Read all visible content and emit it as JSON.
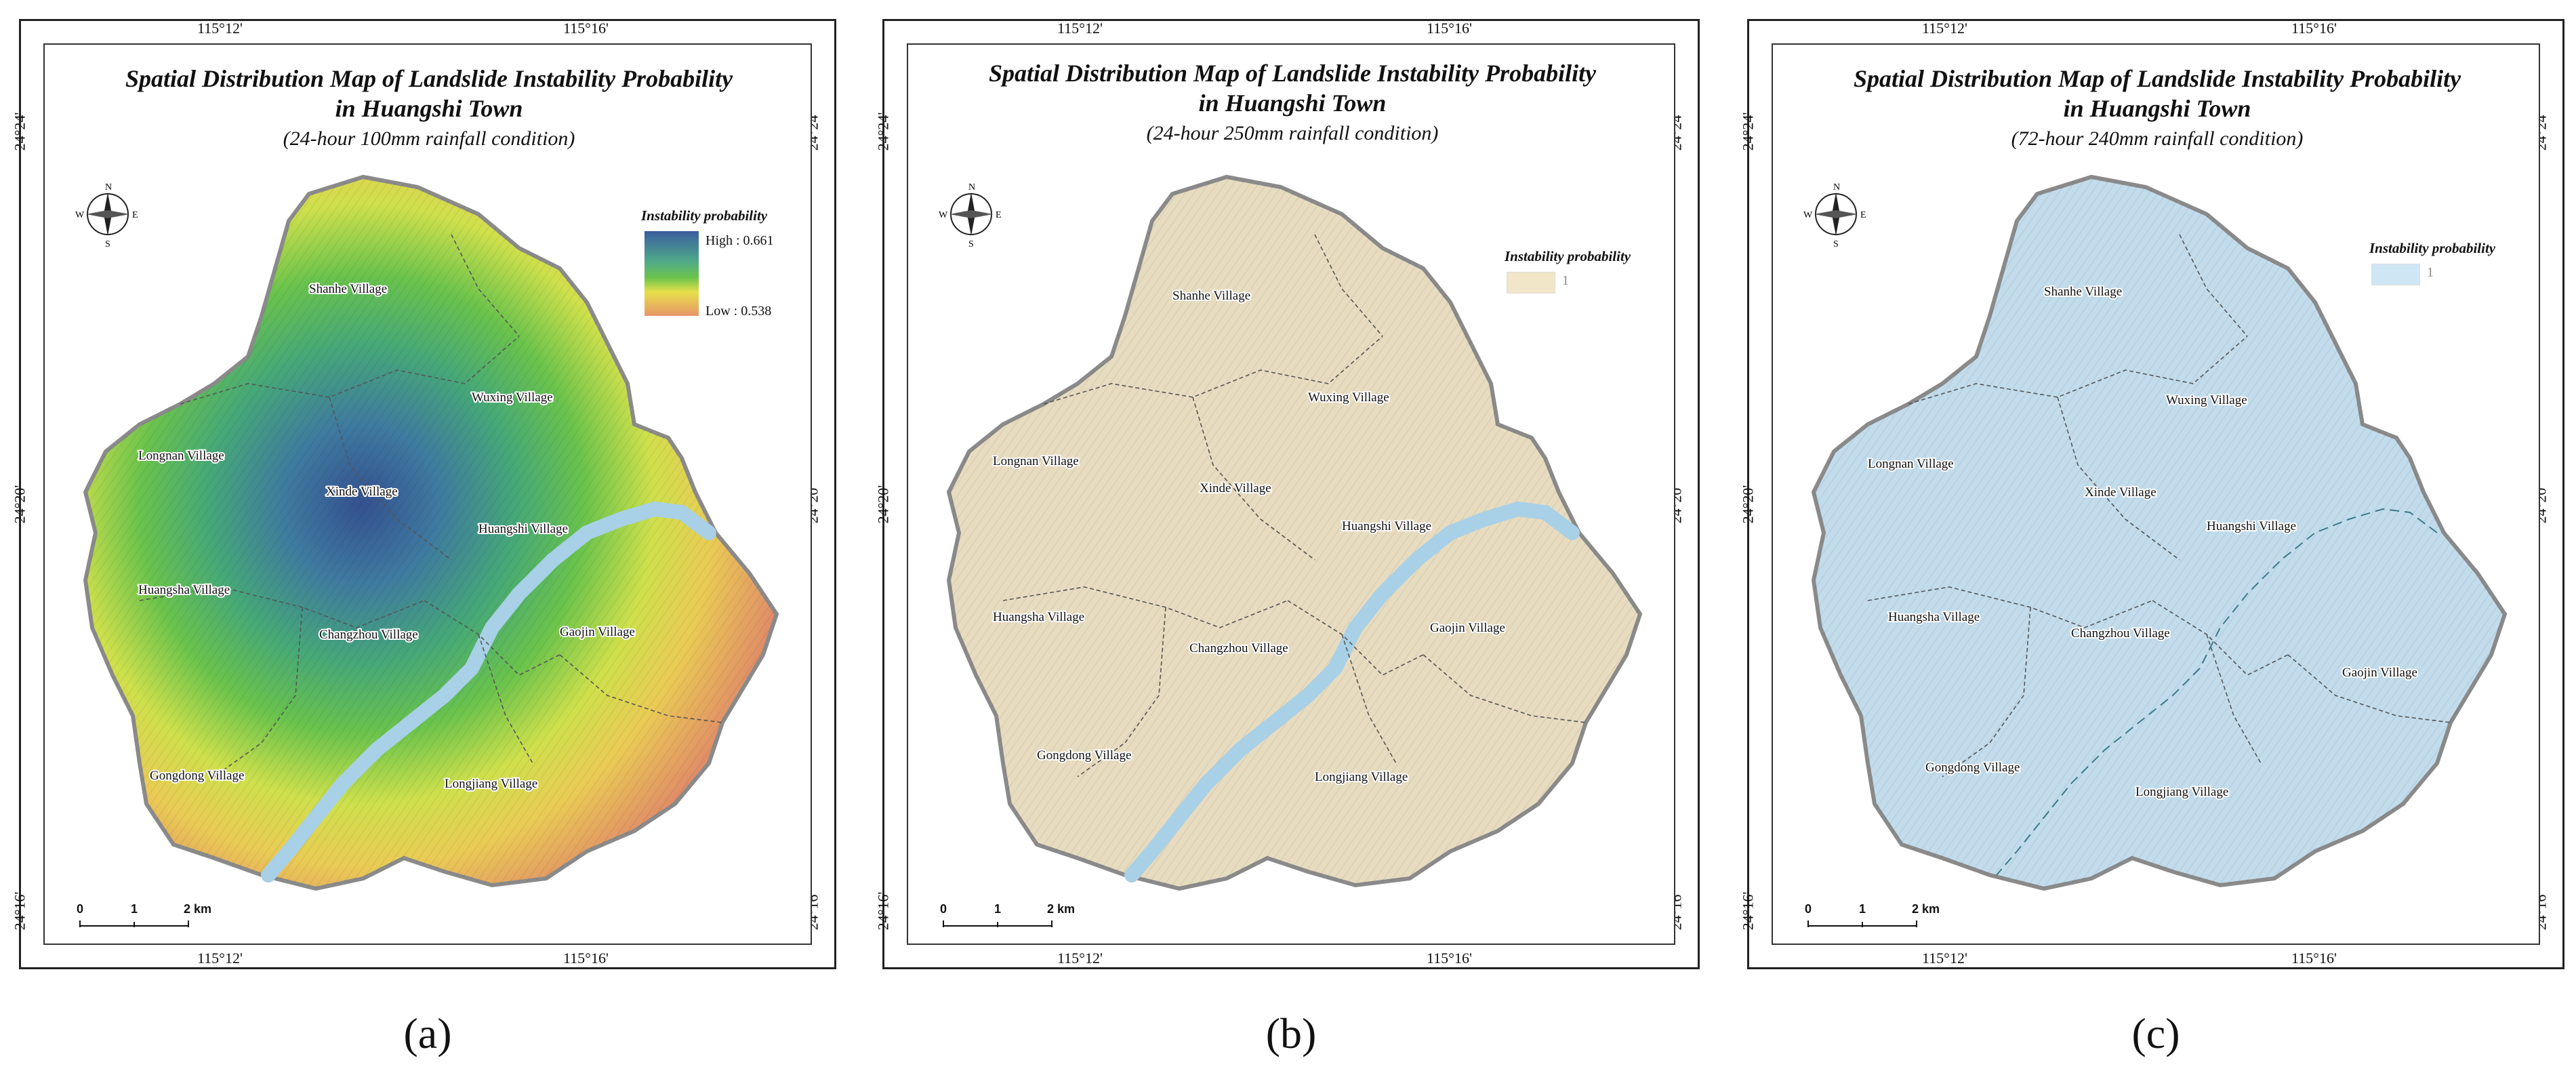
{
  "panels": [
    {
      "title_line1": "Spatial Distribution Map of Landslide Instability Probability",
      "title_line2": "in Huangshi Town",
      "subtitle": "(24-hour 100mm rainfall condition)",
      "legend_title": "Instability probability",
      "legend_high": "High : 0.661",
      "legend_low": "Low  : 0.538",
      "caption": "(a)",
      "fill": "gradient"
    },
    {
      "title_line1": "Spatial Distribution Map of Landslide Instability Probability",
      "title_line2": "in Huangshi Town",
      "subtitle": "(24-hour 250mm rainfall condition)",
      "legend_title": "Instability probability",
      "legend_value": "1",
      "caption": "(b)",
      "fill": "#e8dcc0"
    },
    {
      "title_line1": "Spatial Distribution Map of Landslide Instability Probability",
      "title_line2": "in Huangshi Town",
      "subtitle": "(72-hour 240mm rainfall condition)",
      "legend_title": "Instability probability",
      "legend_value": "1",
      "caption": "(c)",
      "fill": "#c2dcec"
    }
  ],
  "coords": {
    "lon_left": "115°12'",
    "lon_right": "115°16'",
    "lat_top": "24°24'",
    "lat_mid": "24°20'",
    "lat_bottom": "24°16'"
  },
  "compass": {
    "n": "N",
    "s": "S",
    "e": "E",
    "w": "W"
  },
  "scale": {
    "t0": "0",
    "t1": "1",
    "t2": "2 km"
  },
  "villages": {
    "shanhe": "Shanhe Village",
    "wuxing": "Wuxing Village",
    "longnan": "Longnan Village",
    "xinde": "Xinde Village",
    "huangshi": "Huangshi Village",
    "huangsha": "Huangsha Village",
    "changzhou": "Changzhou Village",
    "gaojin": "Gaojin Village",
    "gongdong": "Gongdong Village",
    "longjiang": "Longjiang Village"
  },
  "colors": {
    "gradient_high": "#3a5e9e",
    "gradient_mid": "#5cc05a",
    "gradient_yellow": "#e6e04a",
    "gradient_low": "#e8956a",
    "river": "#a8d0e6",
    "boundary": "#8a8a8a"
  }
}
